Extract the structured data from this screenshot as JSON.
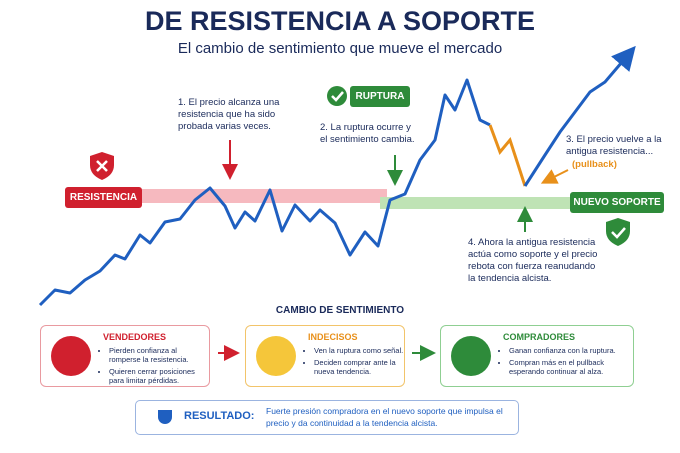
{
  "header": {
    "title": "DE RESISTENCIA A SOPORTE",
    "subtitle": "El cambio de sentimiento que mueve el mercado"
  },
  "chart_labels": {
    "resistance": "RESISTENCIA",
    "breakout": "RUPTURA",
    "new_support": "NUEVO SOPORTE"
  },
  "annotations": [
    {
      "text": "1. El precio alcanza una resistencia que ha sido probada varias veces."
    },
    {
      "text": "2. La ruptura ocurre y el sentimiento cambia."
    },
    {
      "text": "3. El precio vuelve a la antigua resistencia...",
      "note": "(pullback)"
    },
    {
      "text": "4. Ahora la antigua resistencia actúa como soporte y el precio rebota con fuerza reanudando la tendencia alcista."
    }
  ],
  "sentiment": {
    "title": "CAMBIO DE SENTIMIENTO",
    "cards": [
      {
        "title": "VENDEDORES",
        "bullets": [
          "Pierden confianza al romperse la resistencia.",
          "Quieren cerrar posiciones para limitar pérdidas."
        ]
      },
      {
        "title": "INDECISOS",
        "bullets": [
          "Ven la ruptura como señal.",
          "Deciden comprar ante la nueva tendencia."
        ]
      },
      {
        "title": "COMPRADORES",
        "bullets": [
          "Ganan confianza con la ruptura.",
          "Compran más en el pullback esperando continuar al alza."
        ]
      }
    ]
  },
  "result": {
    "label": "RESULTADO:",
    "text": "Fuerte presión compradora en el nuevo soporte que impulsa el precio y da continuidad a la tendencia alcista."
  }
}
